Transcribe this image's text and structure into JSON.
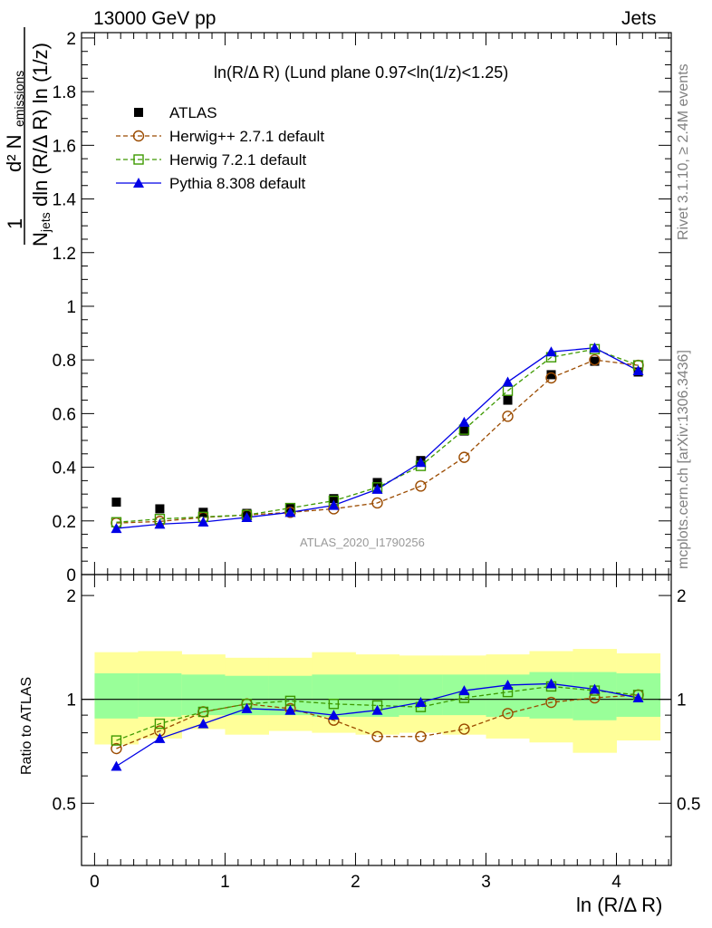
{
  "header": {
    "left": "13000 GeV pp",
    "right": "Jets"
  },
  "side_text": {
    "rivet": "Rivet 3.1.10, ≥ 2.4M events",
    "mcplots": "mcplots.cern.ch [arXiv:1306.3436]"
  },
  "watermark": "ATLAS_2020_I1790256",
  "chart_data": [
    {
      "type": "scatter",
      "title": "ln(R/Δ R) (Lund plane 0.97<ln(1/z)<1.25)",
      "ylabel": "1/N_jets d²N_emissions / dln(R/ΔR) ln(1/z)",
      "xlim": [
        -0.1,
        4.42
      ],
      "ylim": [
        0,
        2.02
      ],
      "x": [
        0.167,
        0.5,
        0.833,
        1.167,
        1.5,
        1.833,
        2.167,
        2.5,
        2.833,
        3.167,
        3.5,
        3.833,
        4.167
      ],
      "series": [
        {
          "name": "ATLAS",
          "color": "#000000",
          "marker": "filled-square",
          "line": "none",
          "values": [
            0.27,
            0.245,
            0.232,
            0.228,
            0.25,
            0.283,
            0.343,
            0.425,
            0.535,
            0.65,
            0.745,
            0.795,
            0.755
          ]
        },
        {
          "name": "Herwig++ 2.7.1 default",
          "color": "#9b4b00",
          "marker": "open-circle",
          "line": "dashed",
          "values": [
            0.192,
            0.198,
            0.213,
            0.222,
            0.232,
            0.245,
            0.267,
            0.33,
            0.437,
            0.59,
            0.733,
            0.8,
            0.78
          ]
        },
        {
          "name": "Herwig 7.2.1 default",
          "color": "#3d9900",
          "marker": "open-square",
          "line": "dashed",
          "values": [
            0.195,
            0.207,
            0.215,
            0.222,
            0.248,
            0.275,
            0.325,
            0.405,
            0.54,
            0.685,
            0.81,
            0.84,
            0.78
          ]
        },
        {
          "name": "Pythia 8.308 default",
          "color": "#0000e6",
          "marker": "filled-triangle",
          "line": "solid",
          "values": [
            0.172,
            0.188,
            0.196,
            0.213,
            0.232,
            0.258,
            0.318,
            0.418,
            0.568,
            0.718,
            0.83,
            0.845,
            0.76
          ]
        }
      ]
    },
    {
      "type": "scatter",
      "xlabel": "ln (R/Δ R)",
      "ylabel": "Ratio to ATLAS",
      "xlim": [
        -0.1,
        4.42
      ],
      "ylim": [
        0.33,
        2.3
      ],
      "x": [
        0.167,
        0.5,
        0.833,
        1.167,
        1.5,
        1.833,
        2.167,
        2.5,
        2.833,
        3.167,
        3.5,
        3.833,
        4.167
      ],
      "bands": {
        "yellow": {
          "color": "#ffff99",
          "lo": [
            0.74,
            0.77,
            0.82,
            0.79,
            0.81,
            0.8,
            0.79,
            0.8,
            0.79,
            0.77,
            0.75,
            0.7,
            0.76
          ],
          "hi": [
            1.37,
            1.38,
            1.35,
            1.32,
            1.32,
            1.37,
            1.35,
            1.34,
            1.34,
            1.35,
            1.38,
            1.4,
            1.36
          ]
        },
        "green": {
          "color": "#99ff99",
          "lo": [
            0.88,
            0.89,
            0.9,
            0.9,
            0.9,
            0.89,
            0.89,
            0.9,
            0.9,
            0.89,
            0.88,
            0.87,
            0.89
          ]
        },
        "green_hi": [
          1.19,
          1.19,
          1.18,
          1.17,
          1.17,
          1.18,
          1.18,
          1.18,
          1.18,
          1.18,
          1.2,
          1.2,
          1.19
        ]
      },
      "reference_line": 1,
      "series": [
        {
          "name": "Herwig++ 2.7.1 default",
          "color": "#9b4b00",
          "marker": "open-circle",
          "line": "dashed",
          "values": [
            0.72,
            0.81,
            0.92,
            0.97,
            0.94,
            0.87,
            0.78,
            0.78,
            0.82,
            0.91,
            0.98,
            1.01,
            1.03
          ]
        },
        {
          "name": "Herwig 7.2.1 default",
          "color": "#3d9900",
          "marker": "open-square",
          "line": "dashed",
          "values": [
            0.76,
            0.85,
            0.92,
            0.97,
            0.99,
            0.97,
            0.96,
            0.95,
            1.01,
            1.05,
            1.09,
            1.06,
            1.03
          ]
        },
        {
          "name": "Pythia 8.308 default",
          "color": "#0000e6",
          "marker": "filled-triangle",
          "line": "solid",
          "values": [
            0.64,
            0.77,
            0.85,
            0.94,
            0.93,
            0.9,
            0.93,
            0.98,
            1.06,
            1.1,
            1.11,
            1.07,
            1.01
          ]
        }
      ]
    }
  ],
  "axes": {
    "main_yticks": [
      "0",
      "0.2",
      "0.4",
      "0.6",
      "0.8",
      "1",
      "1.2",
      "1.4",
      "1.6",
      "1.8",
      "2"
    ],
    "ratio_yticks": [
      "0.5",
      "1",
      "2"
    ],
    "xticks": [
      "0",
      "1",
      "2",
      "3",
      "4"
    ]
  }
}
